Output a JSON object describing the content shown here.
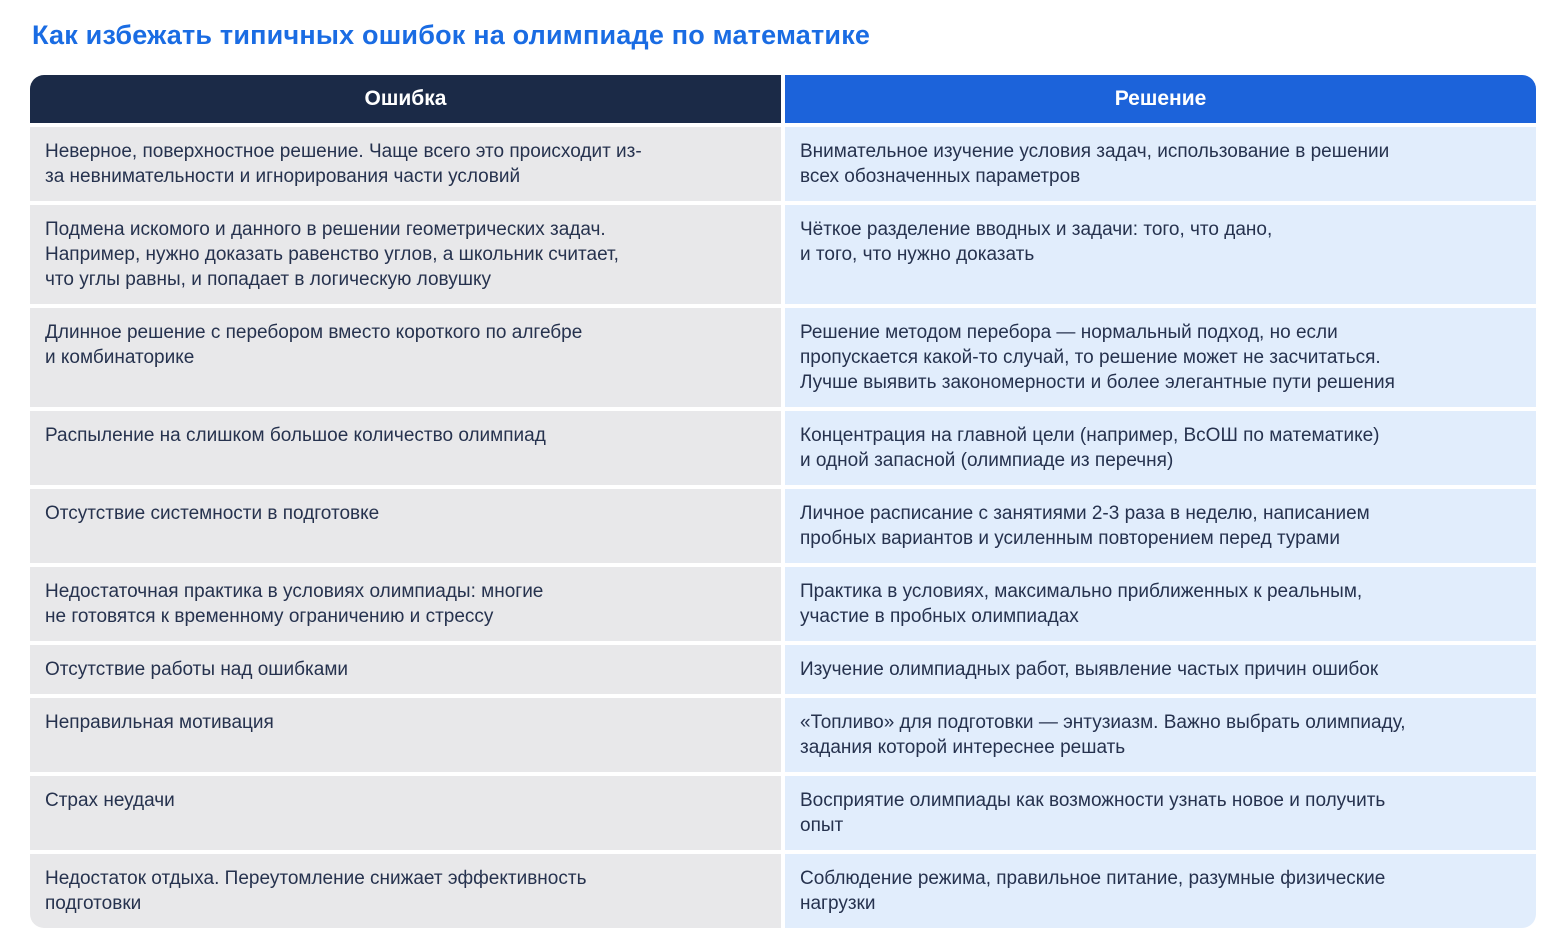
{
  "page": {
    "title": "Как избежать типичных ошибок на олимпиаде по математике"
  },
  "colors": {
    "title_blue": "#1a6ce3",
    "header_mistake_bg": "#1b2a47",
    "header_solution_bg": "#1c63da",
    "cell_mistake_bg": "#e8e8ea",
    "cell_solution_bg": "#e1edfc",
    "cell_text": "#26324e"
  },
  "table": {
    "headers": {
      "mistake": "Ошибка",
      "solution": "Решение"
    },
    "rows": [
      {
        "mistake": "Неверное, поверхностное решение. Чаще всего это происходит из-\nза невнимательности и игнорирования части условий",
        "solution": "Внимательное изучение условия задач, использование в решении\nвсех обозначенных параметров"
      },
      {
        "mistake": "Подмена искомого и данного в решении геометрических задач.\nНапример, нужно доказать равенство углов, а школьник считает,\nчто углы равны, и попадает в логическую ловушку",
        "solution": "Чёткое разделение вводных и задачи: того, что дано,\nи того, что нужно доказать"
      },
      {
        "mistake": "Длинное решение с перебором вместо короткого по алгебре\nи комбинаторике",
        "solution": "Решение методом перебора — нормальный подход, но если\nпропускается какой-то случай, то решение может не засчитаться.\nЛучше выявить закономерности и более элегантные пути решения"
      },
      {
        "mistake": "Распыление на слишком большое количество олимпиад",
        "solution": "Концентрация на главной цели (например, ВсОШ по математике)\nи одной запасной (олимпиаде из перечня)"
      },
      {
        "mistake": "Отсутствие системности в подготовке",
        "solution": "Личное расписание с занятиями 2-3 раза в неделю, написанием\nпробных вариантов и усиленным повторением перед турами"
      },
      {
        "mistake": "Недостаточная практика в условиях олимпиады: многие\nне готовятся к временному ограничению и стрессу",
        "solution": "Практика в условиях, максимально приближенных к реальным,\nучастие в пробных олимпиадах"
      },
      {
        "mistake": "Отсутствие работы над ошибками",
        "solution": "Изучение олимпиадных работ, выявление частых причин ошибок"
      },
      {
        "mistake": "Неправильная мотивация",
        "solution": "«Топливо» для подготовки — энтузиазм. Важно выбрать олимпиаду,\nзадания которой интереснее решать"
      },
      {
        "mistake": "Страх неудачи",
        "solution": "Восприятие олимпиады как возможности узнать новое и получить\nопыт"
      },
      {
        "mistake": "Недостаток отдыха. Переутомление снижает эффективность\nподготовки",
        "solution": "Соблюдение режима, правильное питание, разумные физические\nнагрузки"
      }
    ]
  }
}
